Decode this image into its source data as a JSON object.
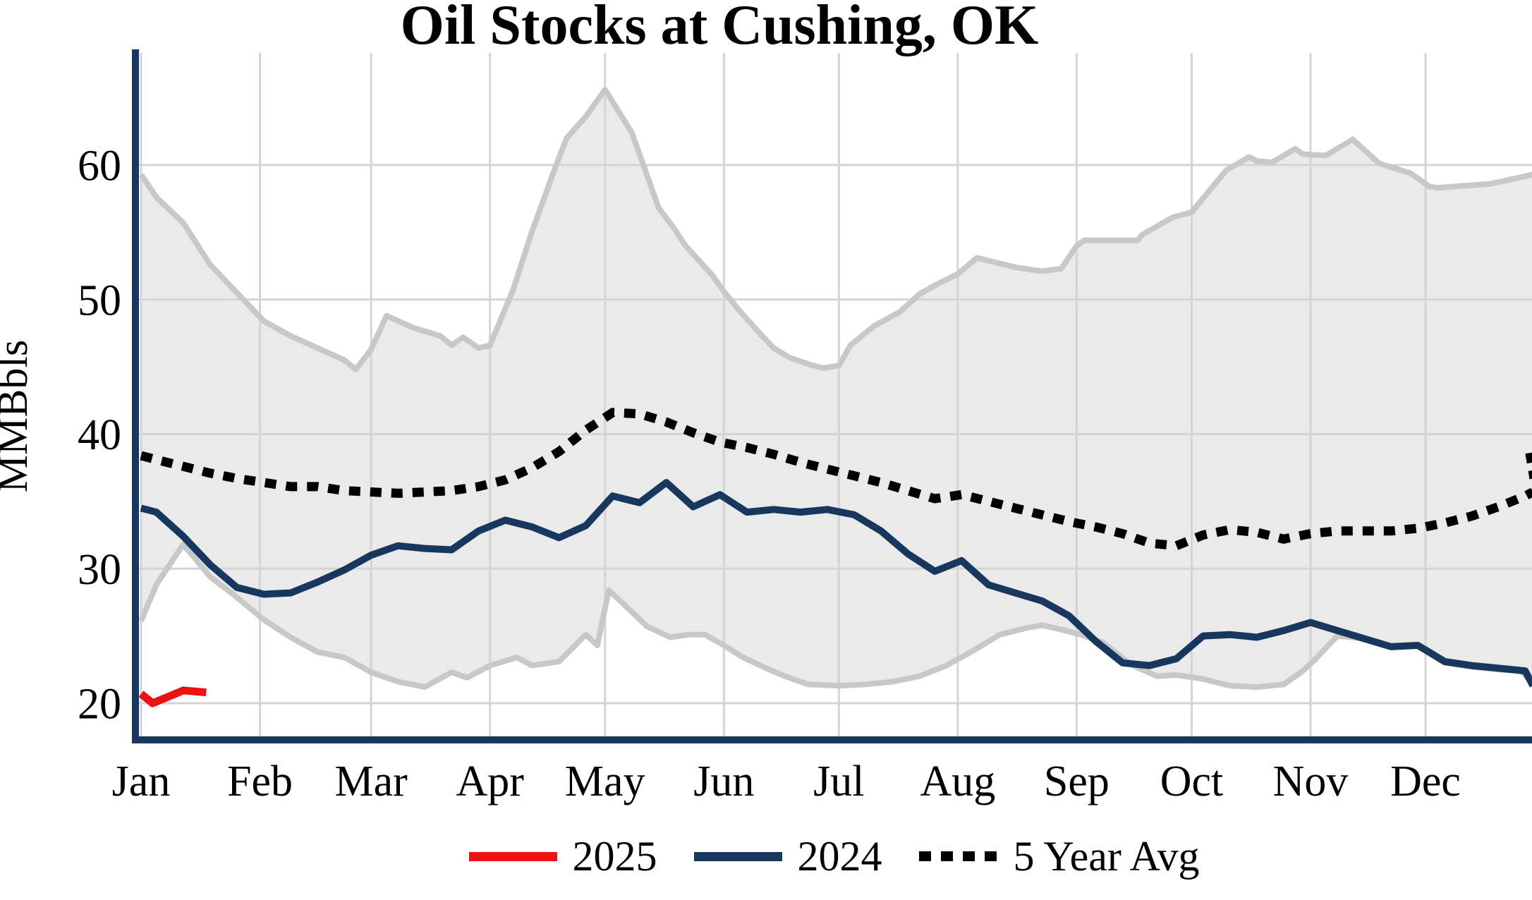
{
  "title": "Oil Stocks at Cushing, OK",
  "y_axis": {
    "label": "MMBbls",
    "ticks": [
      20,
      30,
      40,
      50,
      60
    ]
  },
  "x_axis": {
    "months": [
      {
        "label": "Jan",
        "day": 1
      },
      {
        "label": "Feb",
        "day": 32
      },
      {
        "label": "Mar",
        "day": 61
      },
      {
        "label": "Apr",
        "day": 92
      },
      {
        "label": "May",
        "day": 122
      },
      {
        "label": "Jun",
        "day": 153
      },
      {
        "label": "Jul",
        "day": 183
      },
      {
        "label": "Aug",
        "day": 214
      },
      {
        "label": "Sep",
        "day": 245
      },
      {
        "label": "Oct",
        "day": 275
      },
      {
        "label": "Nov",
        "day": 306
      },
      {
        "label": "Dec",
        "day": 336
      }
    ]
  },
  "legend": [
    {
      "label": "2025",
      "style": "solid",
      "color": "#ee1111"
    },
    {
      "label": "2024",
      "style": "solid",
      "color": "#17375e"
    },
    {
      "label": "5 Year Avg",
      "style": "dotted",
      "color": "#000000"
    }
  ],
  "colors": {
    "series_2025": "#ee1111",
    "series_2024": "#17375e",
    "five_year_avg": "#000000",
    "band_fill": "#eaeaea",
    "band_edge": "#c8c8c8",
    "gridline": "#d4d4d4",
    "axis_spine": "#17375e",
    "text": "#000000"
  },
  "chart_data": {
    "type": "line",
    "title": "Oil Stocks at Cushing, OK",
    "xlabel": "",
    "ylabel": "MMBbls",
    "x_unit": "day_of_year",
    "ylim_ticks": [
      20,
      60
    ],
    "grid": true,
    "legend_position": "bottom-center",
    "series": [
      {
        "name": "5_year_range_band",
        "role": "band",
        "upper": [
          [
            1,
            59.3
          ],
          [
            5,
            57.6
          ],
          [
            12,
            55.7
          ],
          [
            19,
            52.6
          ],
          [
            26,
            50.5
          ],
          [
            33,
            48.4
          ],
          [
            40,
            47.3
          ],
          [
            47,
            46.4
          ],
          [
            54,
            45.5
          ],
          [
            57,
            44.8
          ],
          [
            61,
            46.3
          ],
          [
            65,
            48.8
          ],
          [
            72,
            47.9
          ],
          [
            79,
            47.3
          ],
          [
            82,
            46.6
          ],
          [
            85,
            47.2
          ],
          [
            89,
            46.4
          ],
          [
            92,
            46.6
          ],
          [
            98,
            50.7
          ],
          [
            103,
            55.1
          ],
          [
            109,
            59.8
          ],
          [
            112,
            62.0
          ],
          [
            117,
            63.6
          ],
          [
            122,
            65.6
          ],
          [
            129,
            62.4
          ],
          [
            136,
            56.8
          ],
          [
            140,
            55.3
          ],
          [
            143,
            54.0
          ],
          [
            150,
            51.8
          ],
          [
            153,
            50.6
          ],
          [
            157,
            49.2
          ],
          [
            162,
            47.6
          ],
          [
            166,
            46.4
          ],
          [
            170,
            45.7
          ],
          [
            175,
            45.2
          ],
          [
            179,
            44.9
          ],
          [
            183,
            45.1
          ],
          [
            186,
            46.6
          ],
          [
            192,
            48.0
          ],
          [
            199,
            49.1
          ],
          [
            204,
            50.4
          ],
          [
            209,
            51.2
          ],
          [
            214,
            51.9
          ],
          [
            219,
            53.1
          ],
          [
            229,
            52.4
          ],
          [
            236,
            52.1
          ],
          [
            241,
            52.3
          ],
          [
            245,
            54.0
          ],
          [
            247,
            54.4
          ],
          [
            261,
            54.4
          ],
          [
            262,
            54.8
          ],
          [
            270,
            56.1
          ],
          [
            275,
            56.5
          ],
          [
            284,
            59.6
          ],
          [
            290,
            60.6
          ],
          [
            292,
            60.3
          ],
          [
            296,
            60.2
          ],
          [
            302,
            61.2
          ],
          [
            304,
            60.8
          ],
          [
            310,
            60.7
          ],
          [
            317,
            61.9
          ],
          [
            324,
            60.1
          ],
          [
            332,
            59.4
          ],
          [
            337,
            58.4
          ],
          [
            339,
            58.3
          ],
          [
            353,
            58.6
          ],
          [
            361,
            59.1
          ],
          [
            364,
            59.3
          ]
        ],
        "lower": [
          [
            1,
            26.1
          ],
          [
            5,
            28.8
          ],
          [
            12,
            31.8
          ],
          [
            19,
            29.4
          ],
          [
            25,
            28.1
          ],
          [
            33,
            26.2
          ],
          [
            40,
            24.9
          ],
          [
            47,
            23.8
          ],
          [
            54,
            23.4
          ],
          [
            61,
            22.3
          ],
          [
            68,
            21.6
          ],
          [
            75,
            21.2
          ],
          [
            82,
            22.3
          ],
          [
            86,
            21.9
          ],
          [
            92,
            22.8
          ],
          [
            99,
            23.4
          ],
          [
            103,
            22.8
          ],
          [
            110,
            23.1
          ],
          [
            117,
            25.1
          ],
          [
            120,
            24.3
          ],
          [
            123,
            28.4
          ],
          [
            133,
            25.7
          ],
          [
            139,
            24.9
          ],
          [
            144,
            25.1
          ],
          [
            148,
            25.1
          ],
          [
            153,
            24.3
          ],
          [
            158,
            23.4
          ],
          [
            164,
            22.6
          ],
          [
            169,
            22.0
          ],
          [
            175,
            21.4
          ],
          [
            183,
            21.3
          ],
          [
            190,
            21.4
          ],
          [
            197,
            21.6
          ],
          [
            204,
            22.0
          ],
          [
            211,
            22.8
          ],
          [
            218,
            23.9
          ],
          [
            225,
            25.1
          ],
          [
            232,
            25.6
          ],
          [
            236,
            25.8
          ],
          [
            242,
            25.4
          ],
          [
            246,
            25.1
          ],
          [
            252,
            24.5
          ],
          [
            259,
            22.9
          ],
          [
            266,
            22.0
          ],
          [
            271,
            22.1
          ],
          [
            278,
            21.8
          ],
          [
            285,
            21.3
          ],
          [
            292,
            21.2
          ],
          [
            299,
            21.4
          ],
          [
            304,
            22.4
          ],
          [
            307,
            23.2
          ],
          [
            313,
            25.0
          ],
          [
            320,
            24.8
          ],
          [
            327,
            24.2
          ],
          [
            334,
            24.3
          ],
          [
            341,
            23.0
          ],
          [
            348,
            22.7
          ],
          [
            355,
            22.5
          ],
          [
            361,
            22.4
          ],
          [
            364,
            21.4
          ]
        ]
      },
      {
        "name": "5 Year Avg",
        "role": "line",
        "style": "dotted",
        "points": [
          [
            1,
            38.4
          ],
          [
            5,
            38.1
          ],
          [
            12,
            37.6
          ],
          [
            19,
            37.1
          ],
          [
            26,
            36.7
          ],
          [
            33,
            36.4
          ],
          [
            40,
            36.1
          ],
          [
            47,
            36.1
          ],
          [
            54,
            35.8
          ],
          [
            61,
            35.7
          ],
          [
            68,
            35.6
          ],
          [
            75,
            35.7
          ],
          [
            82,
            35.8
          ],
          [
            89,
            36.1
          ],
          [
            96,
            36.6
          ],
          [
            103,
            37.5
          ],
          [
            110,
            38.7
          ],
          [
            117,
            40.3
          ],
          [
            124,
            41.6
          ],
          [
            131,
            41.5
          ],
          [
            138,
            40.9
          ],
          [
            145,
            40.1
          ],
          [
            152,
            39.4
          ],
          [
            159,
            39.0
          ],
          [
            166,
            38.5
          ],
          [
            173,
            37.9
          ],
          [
            180,
            37.4
          ],
          [
            187,
            36.9
          ],
          [
            194,
            36.4
          ],
          [
            201,
            35.8
          ],
          [
            208,
            35.2
          ],
          [
            215,
            35.5
          ],
          [
            222,
            35.0
          ],
          [
            229,
            34.5
          ],
          [
            236,
            34.0
          ],
          [
            243,
            33.5
          ],
          [
            250,
            33.1
          ],
          [
            257,
            32.6
          ],
          [
            264,
            31.9
          ],
          [
            271,
            31.7
          ],
          [
            278,
            32.5
          ],
          [
            285,
            32.9
          ],
          [
            292,
            32.7
          ],
          [
            299,
            32.2
          ],
          [
            306,
            32.6
          ],
          [
            313,
            32.8
          ],
          [
            320,
            32.8
          ],
          [
            327,
            32.8
          ],
          [
            334,
            33.0
          ],
          [
            341,
            33.4
          ],
          [
            348,
            33.9
          ],
          [
            355,
            34.6
          ],
          [
            362,
            35.4
          ],
          [
            364,
            35.7
          ]
        ],
        "right_edge_jump": [
          [
            363.2,
            38.6
          ],
          [
            364.3,
            36.7
          ]
        ]
      },
      {
        "name": "2024",
        "role": "line",
        "style": "solid",
        "points": [
          [
            1,
            34.5
          ],
          [
            5,
            34.2
          ],
          [
            12,
            32.4
          ],
          [
            19,
            30.3
          ],
          [
            26,
            28.6
          ],
          [
            33,
            28.1
          ],
          [
            40,
            28.2
          ],
          [
            47,
            29.0
          ],
          [
            54,
            29.9
          ],
          [
            61,
            31.0
          ],
          [
            68,
            31.7
          ],
          [
            75,
            31.5
          ],
          [
            82,
            31.4
          ],
          [
            89,
            32.8
          ],
          [
            96,
            33.6
          ],
          [
            103,
            33.1
          ],
          [
            110,
            32.3
          ],
          [
            117,
            33.2
          ],
          [
            124,
            35.4
          ],
          [
            131,
            34.9
          ],
          [
            138,
            36.4
          ],
          [
            145,
            34.6
          ],
          [
            152,
            35.5
          ],
          [
            159,
            34.2
          ],
          [
            166,
            34.4
          ],
          [
            173,
            34.2
          ],
          [
            180,
            34.4
          ],
          [
            187,
            34.0
          ],
          [
            194,
            32.8
          ],
          [
            201,
            31.1
          ],
          [
            208,
            29.8
          ],
          [
            215,
            30.6
          ],
          [
            222,
            28.8
          ],
          [
            229,
            28.2
          ],
          [
            236,
            27.6
          ],
          [
            243,
            26.5
          ],
          [
            250,
            24.6
          ],
          [
            257,
            23.0
          ],
          [
            264,
            22.8
          ],
          [
            271,
            23.3
          ],
          [
            278,
            25.0
          ],
          [
            285,
            25.1
          ],
          [
            292,
            24.9
          ],
          [
            299,
            25.4
          ],
          [
            306,
            26.0
          ],
          [
            313,
            25.4
          ],
          [
            320,
            24.8
          ],
          [
            327,
            24.2
          ],
          [
            334,
            24.3
          ],
          [
            341,
            23.1
          ],
          [
            348,
            22.8
          ],
          [
            355,
            22.6
          ],
          [
            362,
            22.4
          ],
          [
            364,
            21.3
          ]
        ]
      },
      {
        "name": "2025",
        "role": "line",
        "style": "solid",
        "points": [
          [
            1,
            20.7
          ],
          [
            4,
            20.0
          ],
          [
            12,
            20.95
          ],
          [
            18,
            20.8
          ]
        ]
      }
    ]
  }
}
